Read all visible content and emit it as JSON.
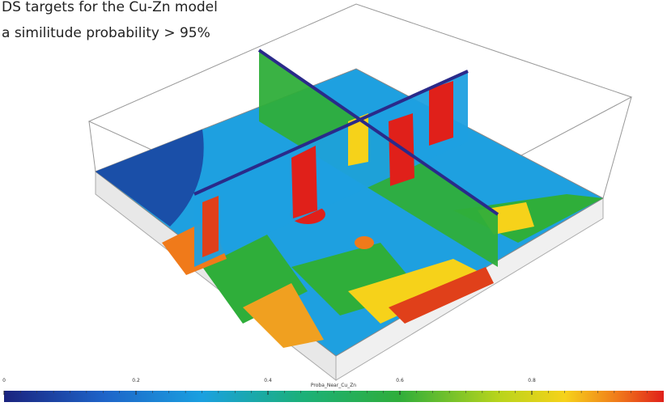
{
  "caption": {
    "line1": "DS targets for the Cu-Zn model",
    "line2": "a similitude probability > 95%"
  },
  "colorbar": {
    "label": "Proba_Near_Cu_Zn",
    "ticks": [
      "0",
      "0.2",
      "0.4",
      "0.6",
      "0.8"
    ]
  }
}
